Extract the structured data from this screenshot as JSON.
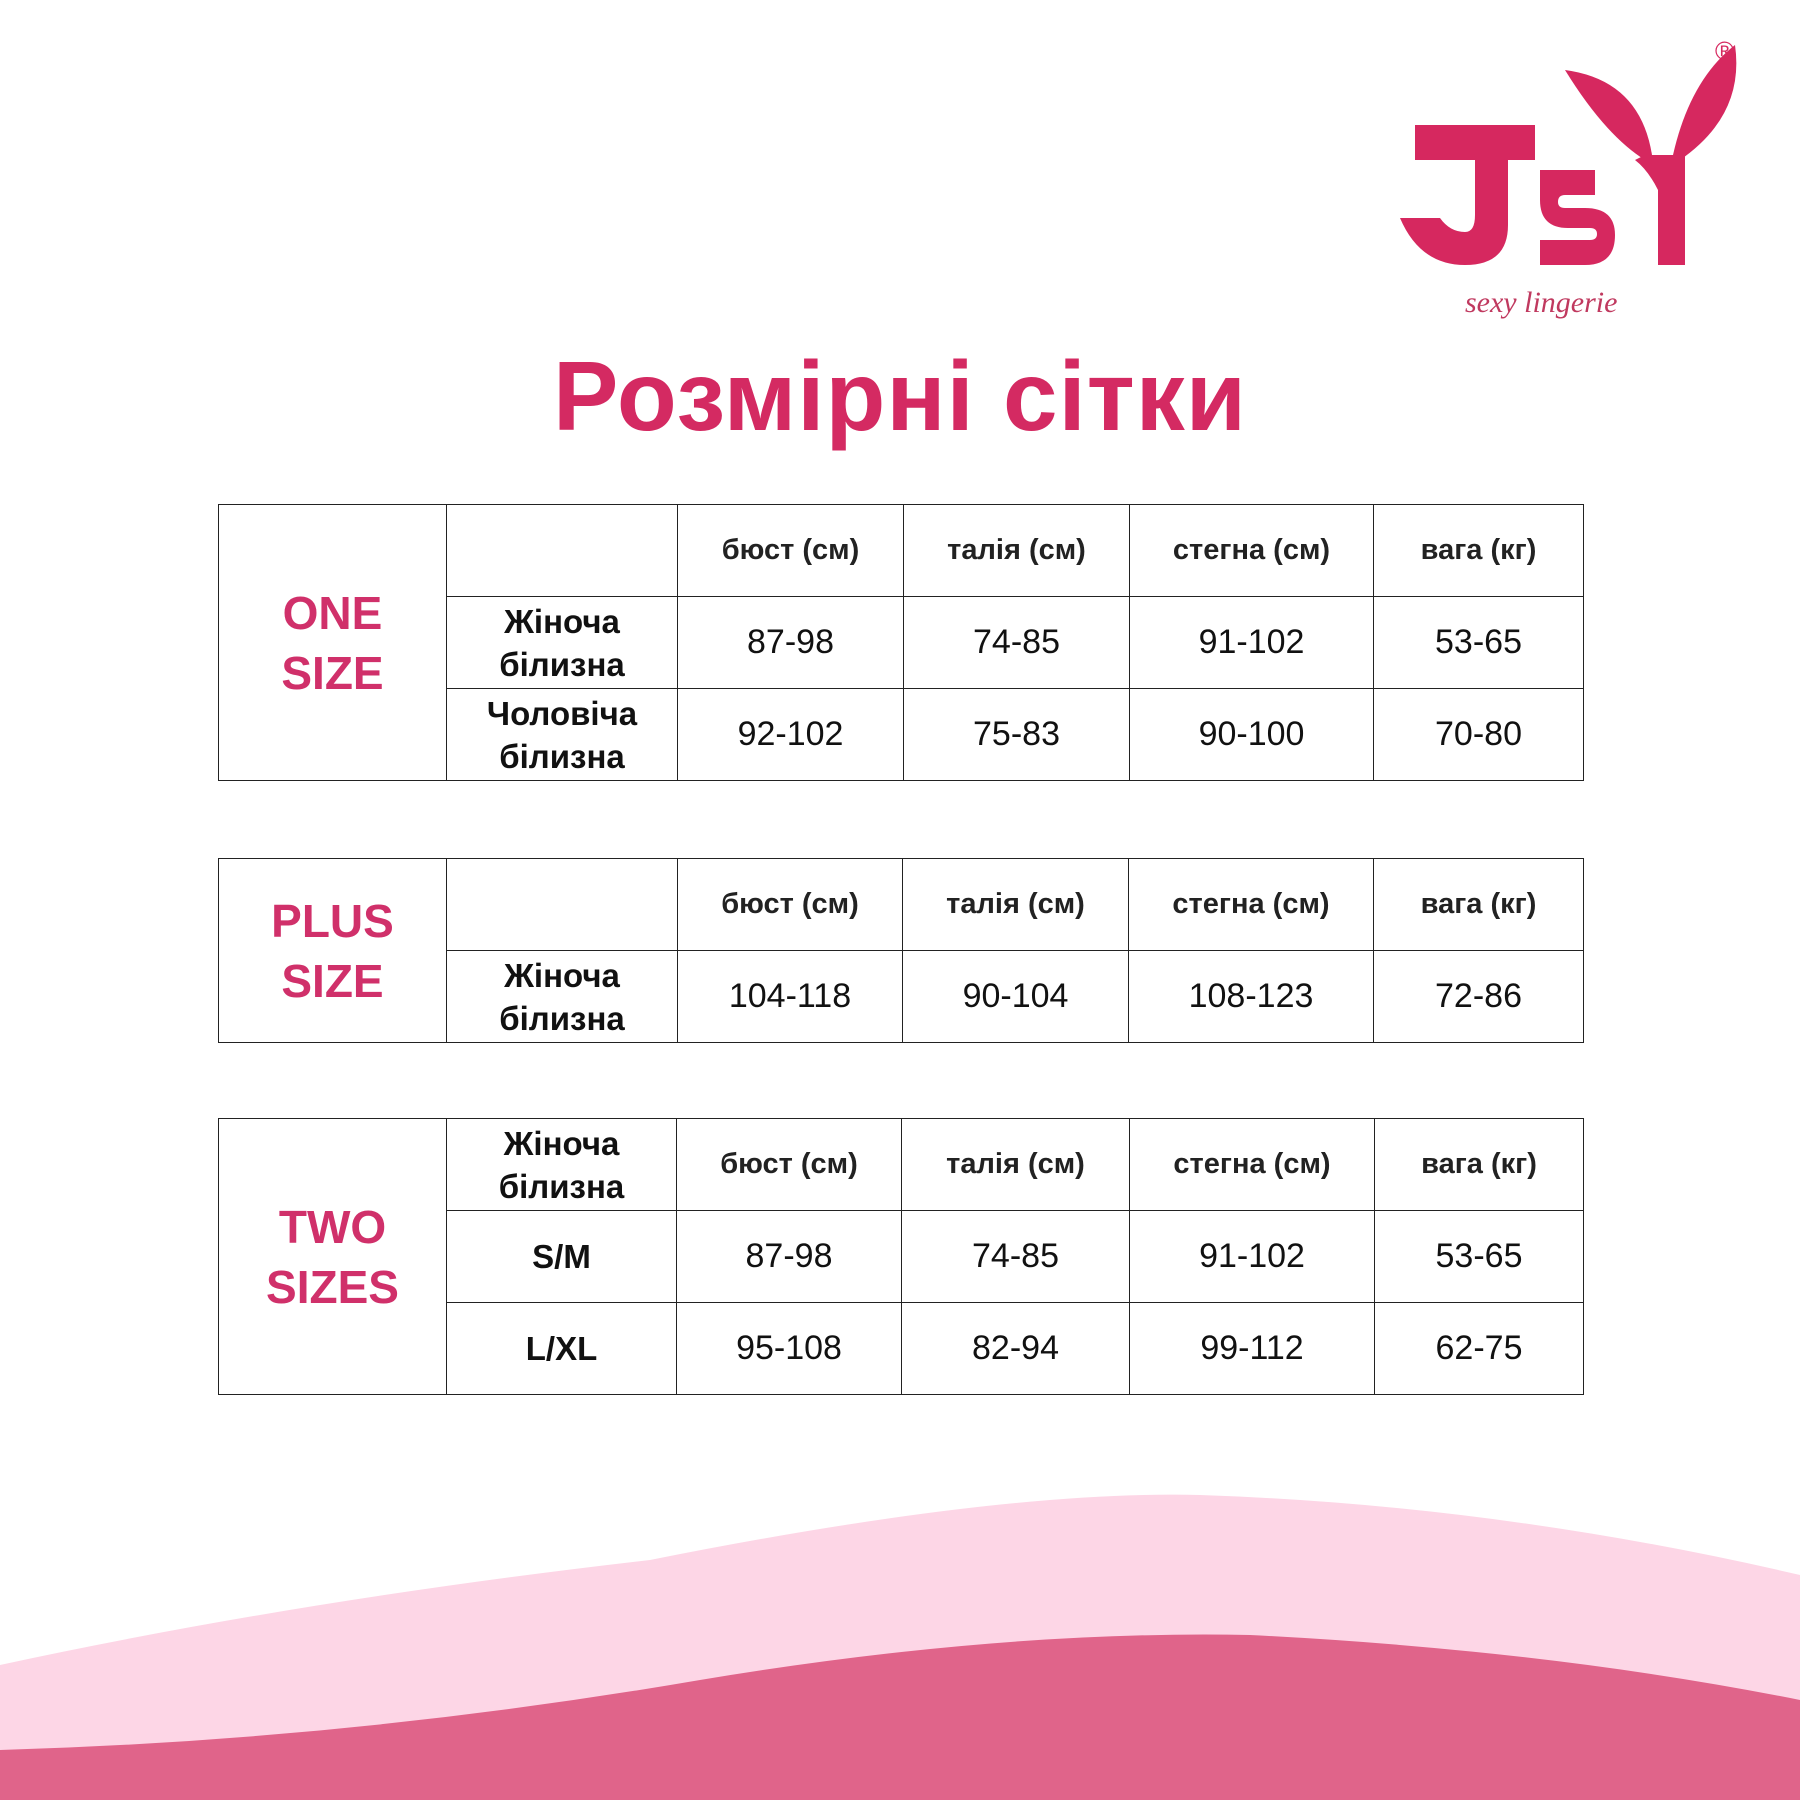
{
  "brand": {
    "name": "JSY",
    "tagline": "sexy lingerie",
    "registered": "®",
    "color": "#d6285f"
  },
  "title": "Розмірні сітки",
  "columns": [
    "бюст (см)",
    "талія (см)",
    "стегна (см)",
    "вага (кг)"
  ],
  "tables": [
    {
      "size_label_1": "ONE",
      "size_label_2": "SIZE",
      "header_label": "",
      "rows": [
        {
          "label_1": "Жіноча",
          "label_2": "білизна",
          "values": [
            "87-98",
            "74-85",
            "91-102",
            "53-65"
          ]
        },
        {
          "label_1": "Чоловіча",
          "label_2": "білизна",
          "values": [
            "92-102",
            "75-83",
            "90-100",
            "70-80"
          ]
        }
      ]
    },
    {
      "size_label_1": "PLUS",
      "size_label_2": "SIZE",
      "header_label": "",
      "rows": [
        {
          "label_1": "Жіноча",
          "label_2": "білизна",
          "values": [
            "104-118",
            "90-104",
            "108-123",
            "72-86"
          ]
        }
      ]
    },
    {
      "size_label_1": "TWO",
      "size_label_2": "SIZES",
      "header_label_1": "Жіноча",
      "header_label_2": "білизна",
      "rows": [
        {
          "label_1": "S/M",
          "label_2": "",
          "values": [
            "87-98",
            "74-85",
            "91-102",
            "53-65"
          ]
        },
        {
          "label_1": "L/XL",
          "label_2": "",
          "values": [
            "95-108",
            "82-94",
            "99-112",
            "62-75"
          ]
        }
      ]
    }
  ],
  "colors": {
    "accent": "#d42a62",
    "size_label": "#d0306a",
    "wave_light": "#fdd6e6",
    "wave_dark": "#e0648a"
  }
}
